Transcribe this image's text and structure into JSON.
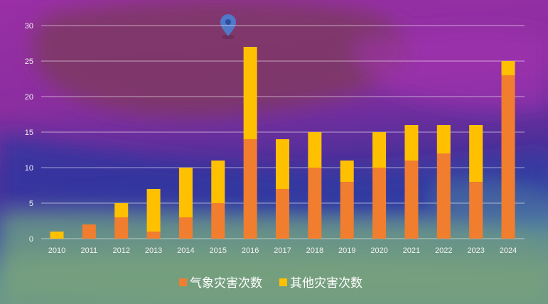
{
  "chart_data": {
    "type": "bar",
    "stacked": true,
    "categories": [
      "2010",
      "2011",
      "2012",
      "2013",
      "2014",
      "2015",
      "2016",
      "2017",
      "2018",
      "2019",
      "2020",
      "2021",
      "2022",
      "2023",
      "2024"
    ],
    "series": [
      {
        "name": "气象灾害次数",
        "color": "#F07E2E",
        "values": [
          0,
          2,
          3,
          1,
          3,
          5,
          14,
          7,
          10,
          8,
          10,
          11,
          12,
          8,
          23
        ]
      },
      {
        "name": "其他灾害次数",
        "color": "#FFC000",
        "values": [
          1,
          0,
          2,
          6,
          7,
          6,
          13,
          7,
          5,
          3,
          5,
          5,
          4,
          8,
          2
        ]
      }
    ],
    "ylim": [
      0,
      30
    ],
    "yticks": [
      0,
      5,
      10,
      15,
      20,
      25,
      30
    ],
    "grid": true,
    "legend_position": "bottom-center",
    "title": "",
    "xlabel": "",
    "ylabel": ""
  },
  "map": {
    "pin_icon": "location-pin-icon",
    "pin_color": "#4A7FD4"
  }
}
